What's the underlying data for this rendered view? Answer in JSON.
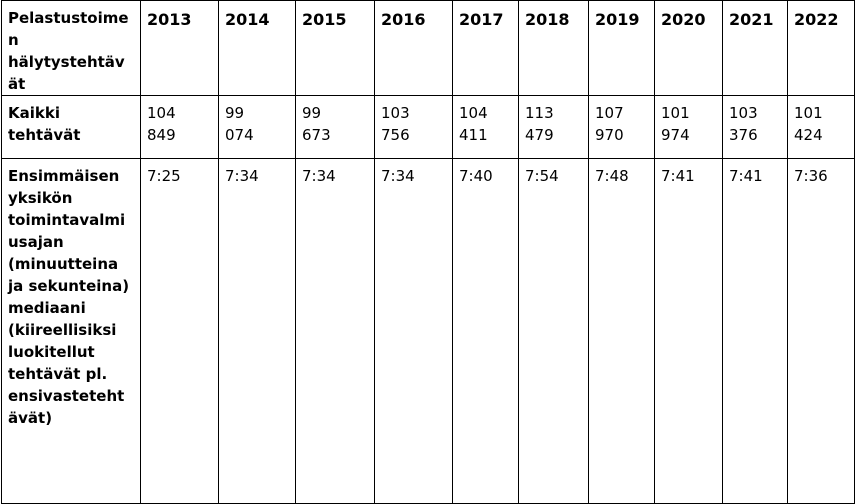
{
  "table": {
    "header_label": "Pelastustoimen hälytystehtävät",
    "years": [
      "2013",
      "2014",
      "2015",
      "2016",
      "2017",
      "2018",
      "2019",
      "2020",
      "2021",
      "2022"
    ],
    "rows": [
      {
        "label": "Kaikki tehtävät",
        "values": [
          [
            "104",
            "849"
          ],
          [
            "99",
            "074"
          ],
          [
            "99",
            "673"
          ],
          [
            "103",
            "756"
          ],
          [
            "104",
            "411"
          ],
          [
            "113",
            "479"
          ],
          [
            "107",
            "970"
          ],
          [
            "101",
            "974"
          ],
          [
            "103",
            "376"
          ],
          [
            "101",
            "424"
          ]
        ]
      },
      {
        "label": "Ensimmäisen yksikön toimintavalmiusajan (minuutteina ja sekunteina) mediaani (kiireellisiksi luokitellut tehtävät pl. ensivastetehtävät)",
        "values": [
          "7:25",
          "7:34",
          "7:34",
          "7:34",
          "7:40",
          "7:54",
          "7:48",
          "7:41",
          "7:41",
          "7:36"
        ]
      }
    ]
  }
}
